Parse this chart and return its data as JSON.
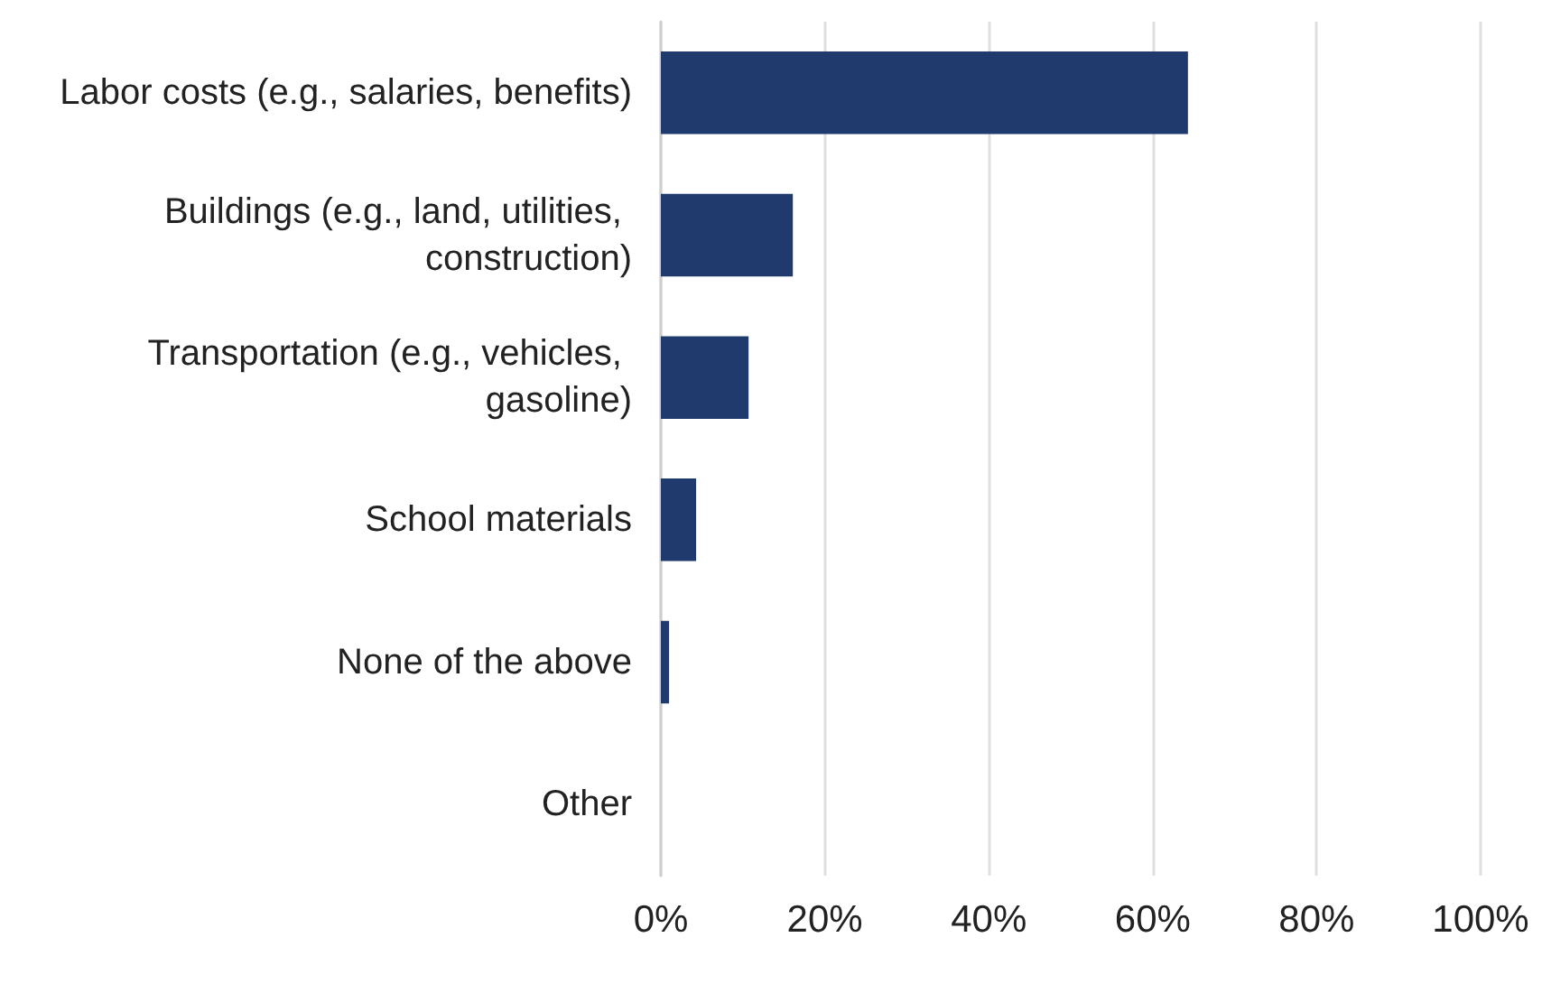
{
  "chart_data": {
    "type": "bar",
    "orientation": "horizontal",
    "categories": [
      "Labor costs (e.g., salaries, benefits)",
      "Buildings (e.g., land, utilities, construction)",
      "Transportation (e.g., vehicles, gasoline)",
      "School materials",
      "None of the above",
      "Other"
    ],
    "values": [
      64.3,
      16.1,
      10.7,
      4.3,
      1.0,
      0
    ],
    "color": "#203a6e",
    "xlim": [
      0,
      100
    ],
    "xticks": [
      {
        "value": 0,
        "label": "0%"
      },
      {
        "value": 20,
        "label": "20%"
      },
      {
        "value": 40,
        "label": "40%"
      },
      {
        "value": 60,
        "label": "60%"
      },
      {
        "value": 80,
        "label": "80%"
      },
      {
        "value": 100,
        "label": "100%"
      }
    ],
    "grid": "x"
  }
}
